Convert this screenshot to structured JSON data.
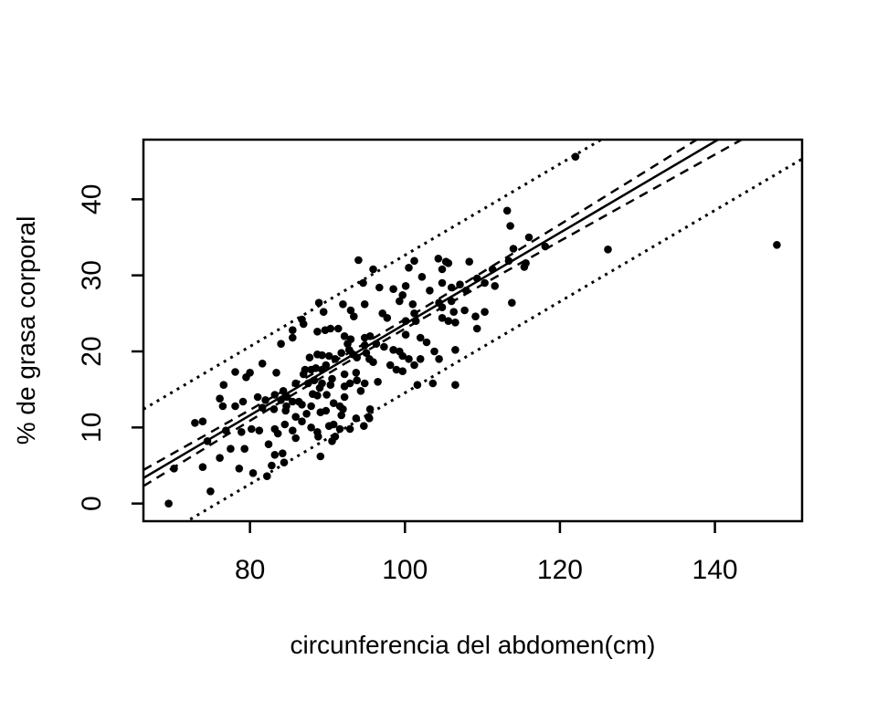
{
  "page": {
    "background": "#ffffff",
    "foreground": "#000000"
  },
  "chart_data": {
    "type": "scatter",
    "title": "",
    "xlabel": "circunferencia del abdomen(cm)",
    "ylabel": "% de grasa corporal",
    "xlim": [
      66.25,
      151.25
    ],
    "ylim": [
      -2.32,
      47.84
    ],
    "x_ticks": [
      80,
      100,
      120,
      140
    ],
    "y_ticks": [
      0,
      10,
      20,
      30,
      40
    ],
    "grid": false,
    "legend": "none",
    "point_color": "#000000",
    "point_radius": 4.3,
    "points": [
      [
        69.5,
        0
      ],
      [
        70.2,
        4.6
      ],
      [
        72.9,
        10.6
      ],
      [
        73.9,
        10.8
      ],
      [
        73.9,
        4.8
      ],
      [
        74.5,
        8.2
      ],
      [
        74.9,
        1.6
      ],
      [
        76.1,
        13.8
      ],
      [
        76.1,
        6
      ],
      [
        76.5,
        12.8
      ],
      [
        76.6,
        15.6
      ],
      [
        76.9,
        9.6
      ],
      [
        77.5,
        7.2
      ],
      [
        78.1,
        17.3
      ],
      [
        78.1,
        12.8
      ],
      [
        78.6,
        4.6
      ],
      [
        78.9,
        9.4
      ],
      [
        79.1,
        13.4
      ],
      [
        79.3,
        7.2
      ],
      [
        79.5,
        16.6
      ],
      [
        80,
        17.2
      ],
      [
        80.2,
        9.8
      ],
      [
        80.4,
        4
      ],
      [
        81,
        14
      ],
      [
        81.2,
        9.6
      ],
      [
        81.6,
        18.4
      ],
      [
        81.6,
        12.6
      ],
      [
        82,
        13.6
      ],
      [
        82.2,
        3.6
      ],
      [
        82.4,
        7.8
      ],
      [
        82.8,
        5
      ],
      [
        83.1,
        12.4
      ],
      [
        83.2,
        14.3
      ],
      [
        83.2,
        9.8
      ],
      [
        83.2,
        6.4
      ],
      [
        83.4,
        17.2
      ],
      [
        83.6,
        9.2
      ],
      [
        84,
        21
      ],
      [
        84,
        13.6
      ],
      [
        84.2,
        6.6
      ],
      [
        84.3,
        14.8
      ],
      [
        84.4,
        5.4
      ],
      [
        84.5,
        10.4
      ],
      [
        84.6,
        12.2
      ],
      [
        84.7,
        12.8
      ],
      [
        84.8,
        14
      ],
      [
        85.5,
        22.8
      ],
      [
        85.5,
        21.8
      ],
      [
        85.5,
        13.4
      ],
      [
        85.5,
        9.6
      ],
      [
        85.9,
        15.8
      ],
      [
        85.9,
        11.4
      ],
      [
        85.9,
        8.6
      ],
      [
        86.3,
        13.4
      ],
      [
        86.7,
        24.2
      ],
      [
        86.7,
        13
      ],
      [
        86.7,
        10.8
      ],
      [
        86.9,
        23.6
      ],
      [
        86.9,
        17
      ],
      [
        87.1,
        17.6
      ],
      [
        87.3,
        11.8
      ],
      [
        87.5,
        15.8
      ],
      [
        87.7,
        19.2
      ],
      [
        87.9,
        17.6
      ],
      [
        87.9,
        12.8
      ],
      [
        87.9,
        10
      ],
      [
        88.1,
        14.4
      ],
      [
        88.3,
        16.2
      ],
      [
        88.5,
        17.8
      ],
      [
        88.7,
        22.6
      ],
      [
        88.7,
        19.6
      ],
      [
        88.7,
        14.2
      ],
      [
        88.7,
        9.4
      ],
      [
        88.8,
        8.8
      ],
      [
        88.9,
        26.4
      ],
      [
        89,
        15.2
      ],
      [
        89.1,
        12
      ],
      [
        89.1,
        6.2
      ],
      [
        89.3,
        19.5
      ],
      [
        89.3,
        17.6
      ],
      [
        89.3,
        15.8
      ],
      [
        89.5,
        25.2
      ],
      [
        89.7,
        22.8
      ],
      [
        89.8,
        18.2
      ],
      [
        89.8,
        12.2
      ],
      [
        89.9,
        14.3
      ],
      [
        90.2,
        19.4
      ],
      [
        90.2,
        10.2
      ],
      [
        90.4,
        23
      ],
      [
        90.4,
        15.6
      ],
      [
        90.6,
        16.4
      ],
      [
        90.6,
        8.2
      ],
      [
        90.8,
        13.2
      ],
      [
        90.8,
        10.4
      ],
      [
        91,
        19
      ],
      [
        91,
        8.8
      ],
      [
        91.4,
        23
      ],
      [
        91.6,
        12.8
      ],
      [
        91.6,
        9.8
      ],
      [
        91.8,
        19.8
      ],
      [
        91.8,
        11.6
      ],
      [
        92,
        26.2
      ],
      [
        92,
        12.4
      ],
      [
        92.2,
        22
      ],
      [
        92.2,
        17
      ],
      [
        92.2,
        15.4
      ],
      [
        92.2,
        14
      ],
      [
        92.6,
        21
      ],
      [
        92.8,
        20.2
      ],
      [
        92.9,
        15.8
      ],
      [
        92.9,
        9.8
      ],
      [
        93,
        25.4
      ],
      [
        93,
        21.6
      ],
      [
        93.3,
        19.6
      ],
      [
        93.4,
        24.6
      ],
      [
        93.7,
        17.2
      ],
      [
        93.7,
        11.2
      ],
      [
        93.8,
        19.2
      ],
      [
        93.8,
        16.2
      ],
      [
        94,
        32
      ],
      [
        94.3,
        14.8
      ],
      [
        94.6,
        29
      ],
      [
        94.7,
        10.2
      ],
      [
        94.8,
        26.2
      ],
      [
        94.8,
        21.8
      ],
      [
        94.8,
        20.8
      ],
      [
        94.8,
        15.8
      ],
      [
        95,
        19.8
      ],
      [
        95.3,
        11.4
      ],
      [
        95.4,
        19
      ],
      [
        95.4,
        11.2
      ],
      [
        95.5,
        22
      ],
      [
        95.5,
        12.4
      ],
      [
        95.9,
        30.8
      ],
      [
        95.9,
        18.6
      ],
      [
        96.3,
        21
      ],
      [
        96.5,
        16
      ],
      [
        96.7,
        28.4
      ],
      [
        97.1,
        25
      ],
      [
        97.3,
        20.6
      ],
      [
        97.7,
        24.4
      ],
      [
        98.1,
        18.2
      ],
      [
        98.5,
        28.2
      ],
      [
        98.5,
        20.2
      ],
      [
        98.9,
        17.6
      ],
      [
        99.3,
        26.6
      ],
      [
        99.3,
        20
      ],
      [
        99.7,
        27.4
      ],
      [
        99.7,
        19.4
      ],
      [
        99.7,
        17.4
      ],
      [
        100.1,
        28.6
      ],
      [
        100.1,
        24
      ],
      [
        100.1,
        22.2
      ],
      [
        100.5,
        31
      ],
      [
        100.5,
        19
      ],
      [
        101,
        26.2
      ],
      [
        101.2,
        31.9
      ],
      [
        101.2,
        25
      ],
      [
        101.2,
        18.2
      ],
      [
        101.4,
        24
      ],
      [
        101.6,
        15.6
      ],
      [
        102,
        21.8
      ],
      [
        102,
        19
      ],
      [
        102.2,
        29.8
      ],
      [
        102.8,
        21.2
      ],
      [
        103.2,
        28
      ],
      [
        103.6,
        15.8
      ],
      [
        103.8,
        20
      ],
      [
        104.3,
        32.2
      ],
      [
        104.4,
        26.4
      ],
      [
        104.4,
        19
      ],
      [
        104.8,
        30.8
      ],
      [
        104.8,
        29
      ],
      [
        104.8,
        25.8
      ],
      [
        104.8,
        24.4
      ],
      [
        105.3,
        31.8
      ],
      [
        105.6,
        31.6
      ],
      [
        105.6,
        24
      ],
      [
        106,
        28.4
      ],
      [
        106,
        26.6
      ],
      [
        106.3,
        25.2
      ],
      [
        106.5,
        23.8
      ],
      [
        106.5,
        20.2
      ],
      [
        106.5,
        15.6
      ],
      [
        107.1,
        28.8
      ],
      [
        107.7,
        25.4
      ],
      [
        107.9,
        28
      ],
      [
        108.3,
        31.8
      ],
      [
        109.1,
        24.6
      ],
      [
        109.3,
        29.6
      ],
      [
        109.3,
        23
      ],
      [
        110.3,
        29
      ],
      [
        110.3,
        25.2
      ],
      [
        111.3,
        30.8
      ],
      [
        111.6,
        28.6
      ],
      [
        113.2,
        38.5
      ],
      [
        113.4,
        31.9
      ],
      [
        113.6,
        36.5
      ],
      [
        113.8,
        26.4
      ],
      [
        114,
        33.5
      ],
      [
        115.4,
        31.1
      ],
      [
        115.6,
        31.6
      ],
      [
        116,
        35
      ],
      [
        118.1,
        33.8
      ],
      [
        122,
        45.6
      ],
      [
        126.2,
        33.4
      ],
      [
        148,
        34
      ]
    ],
    "regression_line": {
      "style": "solid",
      "slope": 0.6,
      "intercept": -36.4
    },
    "confidence_band": {
      "style": "dashed",
      "upper": [
        [
          66.25,
          4.41
        ],
        [
          75,
          9.42
        ],
        [
          85,
          15.21
        ],
        [
          92.6,
          19.71
        ],
        [
          100,
          24.21
        ],
        [
          110,
          30.41
        ],
        [
          120,
          36.69
        ],
        [
          130,
          43.0
        ],
        [
          140,
          49.32
        ],
        [
          151.25,
          56.44
        ]
      ],
      "lower": [
        [
          66.25,
          2.29
        ],
        [
          75,
          7.78
        ],
        [
          85,
          13.99
        ],
        [
          92.6,
          18.61
        ],
        [
          100,
          22.99
        ],
        [
          110,
          28.79
        ],
        [
          120,
          34.51
        ],
        [
          130,
          40.2
        ],
        [
          140,
          45.88
        ],
        [
          151.25,
          52.26
        ]
      ]
    },
    "prediction_band": {
      "style": "dotted",
      "slope": 0.6,
      "upper_intercept": -27.35,
      "lower_intercept": -45.45
    }
  }
}
